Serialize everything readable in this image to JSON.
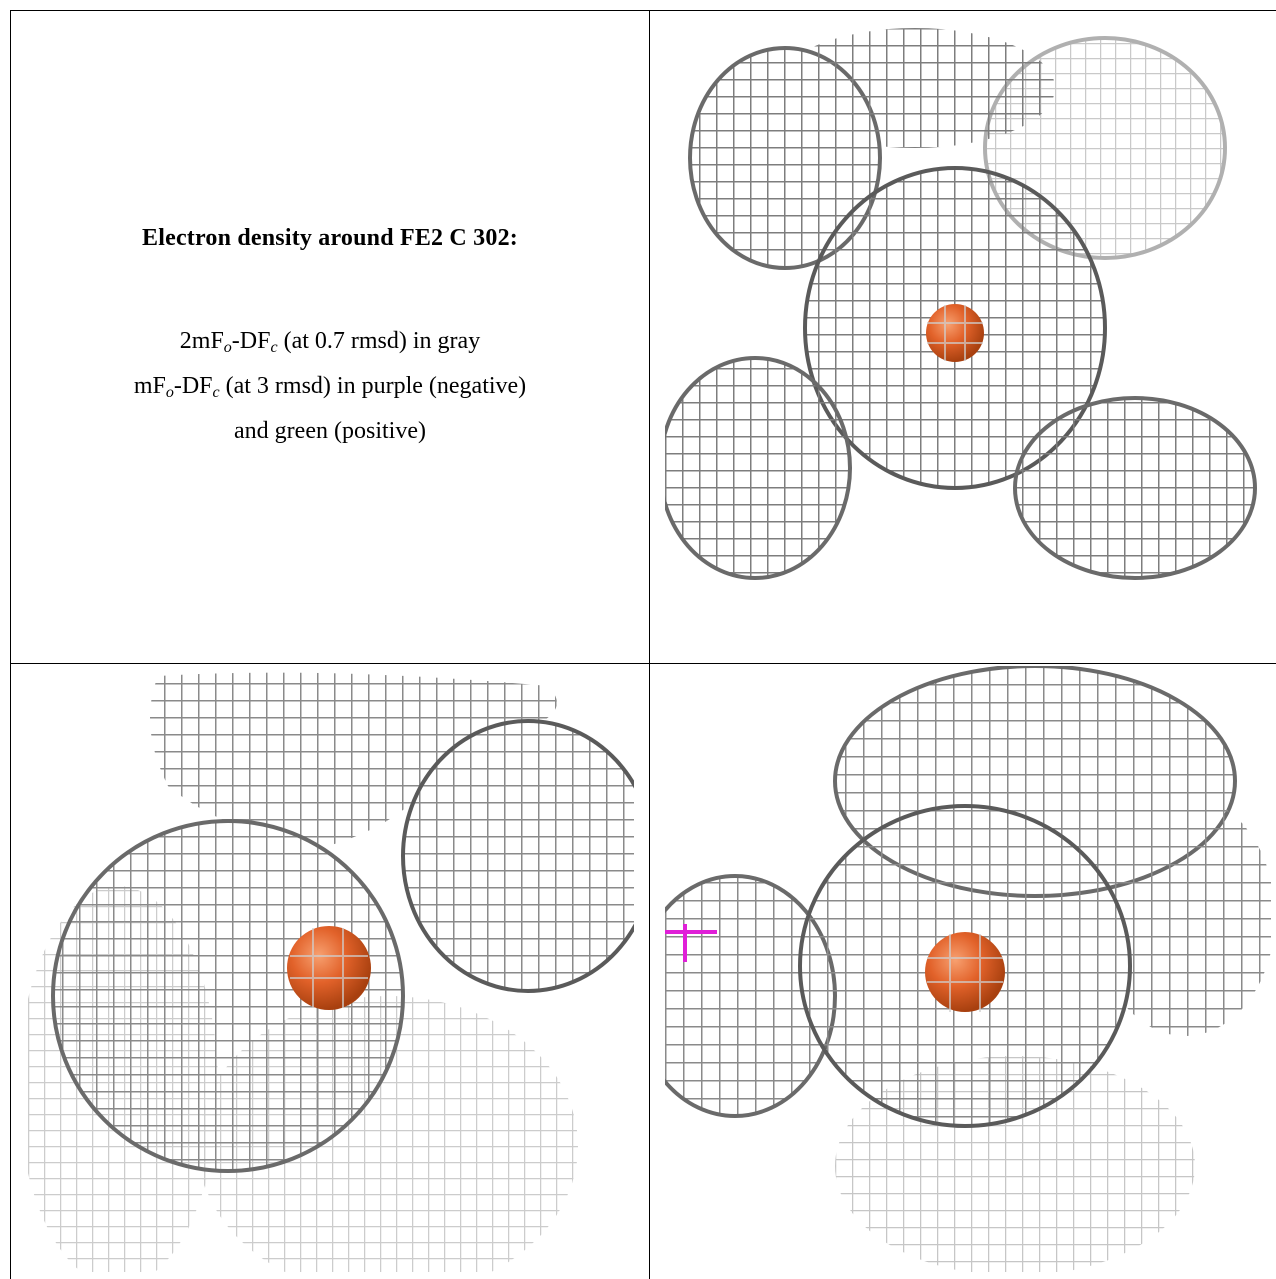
{
  "caption": {
    "title": "Electron density around FE2 C 302:",
    "line1_prefix": "2mF",
    "line1_sub1": "o",
    "line1_mid": "-DF",
    "line1_sub2": "c",
    "line1_suffix": " (at 0.7 rmsd) in gray",
    "line2_prefix": "mF",
    "line2_sub1": "o",
    "line2_mid": "-DF",
    "line2_sub2": "c",
    "line2_suffix": " (at 3 rmsd) in purple (negative)",
    "line3": "and green (positive)"
  },
  "colors": {
    "mesh_gray": "#8a8a8a",
    "mesh_light": "#c8c8c8",
    "mesh_dark": "#4a4a4a",
    "atom_orange": "#e2622a",
    "marker_magenta": "#e020d8",
    "frame": "#000000"
  },
  "views": [
    {
      "name": "view-top-right",
      "atom": "FE2"
    },
    {
      "name": "view-bottom-left",
      "atom": "FE2"
    },
    {
      "name": "view-bottom-right",
      "atom": "FE2",
      "marker": "magenta-cross"
    }
  ]
}
